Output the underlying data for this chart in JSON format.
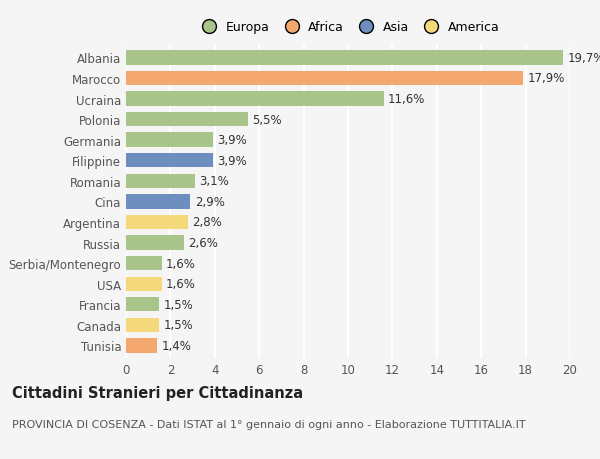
{
  "categories": [
    "Albania",
    "Marocco",
    "Ucraina",
    "Polonia",
    "Germania",
    "Filippine",
    "Romania",
    "Cina",
    "Argentina",
    "Russia",
    "Serbia/Montenegro",
    "USA",
    "Francia",
    "Canada",
    "Tunisia"
  ],
  "values": [
    19.7,
    17.9,
    11.6,
    5.5,
    3.9,
    3.9,
    3.1,
    2.9,
    2.8,
    2.6,
    1.6,
    1.6,
    1.5,
    1.5,
    1.4
  ],
  "labels": [
    "19,7%",
    "17,9%",
    "11,6%",
    "5,5%",
    "3,9%",
    "3,9%",
    "3,1%",
    "2,9%",
    "2,8%",
    "2,6%",
    "1,6%",
    "1,6%",
    "1,5%",
    "1,5%",
    "1,4%"
  ],
  "continents": [
    "Europa",
    "Africa",
    "Europa",
    "Europa",
    "Europa",
    "Asia",
    "Europa",
    "Asia",
    "America",
    "Europa",
    "Europa",
    "America",
    "Europa",
    "America",
    "Africa"
  ],
  "continent_colors": {
    "Europa": "#a8c48a",
    "Africa": "#f4a870",
    "Asia": "#6e8ec0",
    "America": "#f5d87a"
  },
  "legend_order": [
    "Europa",
    "Africa",
    "Asia",
    "America"
  ],
  "xlim": [
    0,
    20
  ],
  "xticks": [
    0,
    2,
    4,
    6,
    8,
    10,
    12,
    14,
    16,
    18,
    20
  ],
  "title": "Cittadini Stranieri per Cittadinanza",
  "subtitle": "PROVINCIA DI COSENZA - Dati ISTAT al 1° gennaio di ogni anno - Elaborazione TUTTITALIA.IT",
  "background_color": "#f5f5f5",
  "grid_color": "#ffffff",
  "bar_height": 0.7,
  "label_fontsize": 8.5,
  "axis_fontsize": 8.5,
  "title_fontsize": 10.5,
  "subtitle_fontsize": 8.0
}
